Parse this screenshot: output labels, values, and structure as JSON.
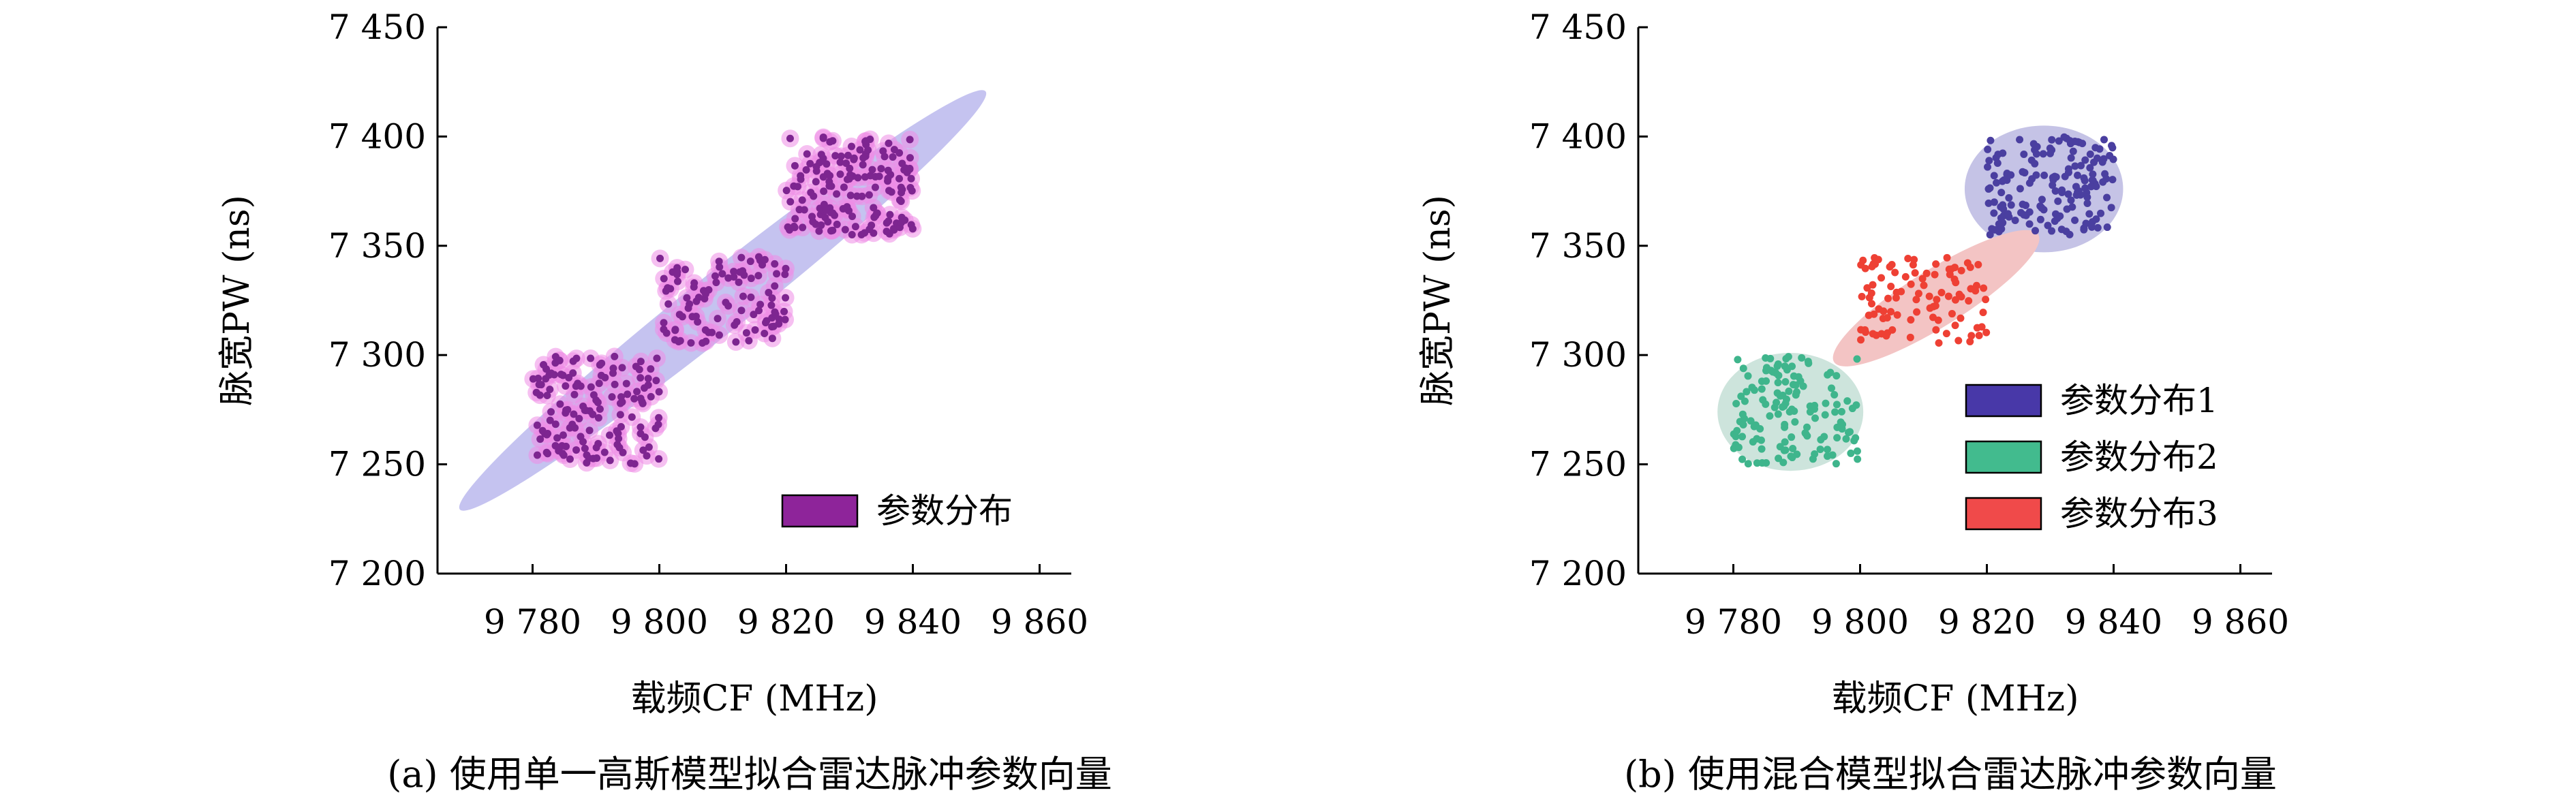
{
  "chart_data": [
    {
      "type": "scatter",
      "subplot": "a",
      "caption": "(a) 使用单一高斯模型拟合雷达脉冲参数向量",
      "xlabel": "载频CF (MHz)",
      "ylabel": "脉宽PW (ns)",
      "xlim": [
        9765,
        9865
      ],
      "ylim": [
        7200,
        7450
      ],
      "xticks": [
        9780,
        9800,
        9820,
        9840,
        9860
      ],
      "xtick_labels": [
        "9 780",
        "9 800",
        "9 820",
        "9 840",
        "9 860"
      ],
      "yticks": [
        7200,
        7250,
        7300,
        7350,
        7400,
        7450
      ],
      "ytick_labels": [
        "7 200",
        "7 250",
        "7 300",
        "7 350",
        "7 400",
        "7 450"
      ],
      "grid": false,
      "legend_position": "bottom-right",
      "ellipses": [
        {
          "cx": 9810,
          "cy": 7325,
          "rx": 53,
          "ry": 13.5,
          "angle_deg": 38.5,
          "color": "#c5c3f0"
        }
      ],
      "series": [
        {
          "name": "参数分布",
          "color": "#7d2590",
          "halo": "#ee8ce6",
          "clusters": [
            {
              "x_range": [
                9780,
                9800
              ],
              "y_range": [
                7250,
                7300
              ],
              "n": 140
            },
            {
              "x_range": [
                9800,
                9820
              ],
              "y_range": [
                7305,
                7345
              ],
              "n": 100
            },
            {
              "x_range": [
                9820,
                9840
              ],
              "y_range": [
                7355,
                7400
              ],
              "n": 160
            }
          ]
        }
      ],
      "legend": [
        {
          "label": "参数分布",
          "color": "#8e249a"
        }
      ]
    },
    {
      "type": "scatter",
      "subplot": "b",
      "caption": "(b) 使用混合模型拟合雷达脉冲参数向量",
      "xlabel": "载频CF (MHz)",
      "ylabel": "脉宽PW (ns)",
      "xlim": [
        9765,
        9865
      ],
      "ylim": [
        7200,
        7450
      ],
      "xticks": [
        9780,
        9800,
        9820,
        9840,
        9860
      ],
      "xtick_labels": [
        "9 780",
        "9 800",
        "9 820",
        "9 840",
        "9 860"
      ],
      "yticks": [
        7200,
        7250,
        7300,
        7350,
        7400,
        7450
      ],
      "ytick_labels": [
        "7 200",
        "7 250",
        "7 300",
        "7 350",
        "7 400",
        "7 450"
      ],
      "grid": false,
      "legend_position": "bottom-right",
      "ellipses": [
        {
          "cx": 9829,
          "cy": 7376,
          "rx": 12.5,
          "ry": 29,
          "angle_deg": 0,
          "color": "#c5c3e6"
        },
        {
          "cx": 9812,
          "cy": 7326,
          "rx": 19,
          "ry": 13,
          "angle_deg": 32,
          "color": "#f3c4c4"
        },
        {
          "cx": 9789,
          "cy": 7274,
          "rx": 11.5,
          "ry": 27,
          "angle_deg": 0,
          "color": "#cde4dc"
        }
      ],
      "series": [
        {
          "name": "参数分布1",
          "color": "#4a3fa0",
          "clusters": [
            {
              "x_range": [
                9820,
                9840
              ],
              "y_range": [
                7355,
                7400
              ],
              "n": 160
            }
          ]
        },
        {
          "name": "参数分布2",
          "color": "#3fb58c",
          "clusters": [
            {
              "x_range": [
                9780,
                9800
              ],
              "y_range": [
                7250,
                7300
              ],
              "n": 140
            }
          ]
        },
        {
          "name": "参数分布3",
          "color": "#ee4034",
          "clusters": [
            {
              "x_range": [
                9800,
                9820
              ],
              "y_range": [
                7305,
                7345
              ],
              "n": 100
            }
          ]
        }
      ],
      "legend": [
        {
          "label": "参数分布1",
          "color": "#4838a8"
        },
        {
          "label": "参数分布2",
          "color": "#42bb8e"
        },
        {
          "label": "参数分布3",
          "color": "#f04a4a"
        }
      ]
    }
  ]
}
